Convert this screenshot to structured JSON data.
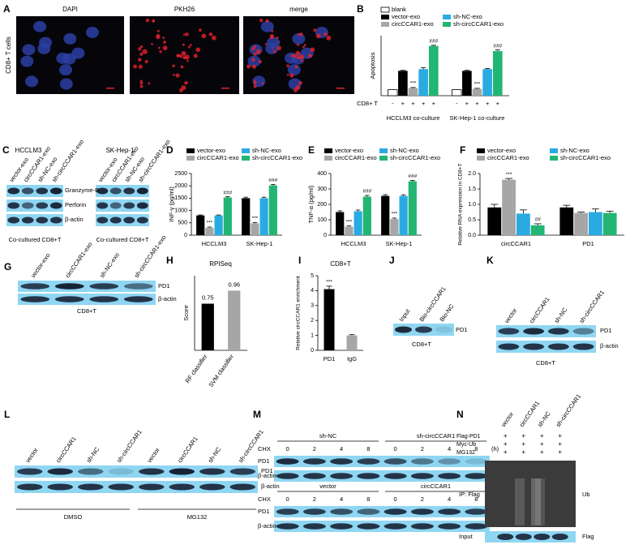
{
  "figure": {
    "a": {
      "letter": "A",
      "channels": [
        "DAPI",
        "PKH26",
        "merge"
      ],
      "row_label": "CD8+ T cells"
    },
    "c": {
      "letter": "C",
      "groups": [
        {
          "title": "HCCLM3",
          "lanes": [
            "vector-exo",
            "circCCAR1-exo",
            "sh-NC-exo",
            "sh-circCCAR1-exo"
          ]
        },
        {
          "title": "SK-Hep-1",
          "lanes": [
            "vector-exo",
            "circCCAR1-exo",
            "sh-NC-exo",
            "sh-circCCAR1-exo"
          ]
        }
      ],
      "proteins": [
        "Granzyme-B",
        "Perforin",
        "β-actin"
      ],
      "caption": "Co-cultured CD8+T"
    },
    "g": {
      "letter": "G",
      "lanes": [
        "vector-exo",
        "circCCAR1-exo",
        "sh-NC-exo",
        "sh-circCCAR1-exo"
      ],
      "proteins": [
        "PD1",
        "β-actin"
      ],
      "caption": "CD8+T"
    },
    "j": {
      "letter": "J",
      "lanes": [
        "Input",
        "Bio-circCCAR1",
        "Bio-NC"
      ],
      "proteins": [
        "PD1"
      ],
      "caption": "CD8+T"
    },
    "k": {
      "letter": "K",
      "lanes": [
        "vector",
        "circCCAR1",
        "sh-NC",
        "sh-circCCAR1"
      ],
      "proteins": [
        "PD1",
        "β-actin"
      ],
      "caption": "CD8+T"
    },
    "l": {
      "letter": "L",
      "lanes": [
        "vector",
        "circCCAR1",
        "sh-NC",
        "sh-circCCAR1",
        "vector",
        "circCCAR1",
        "sh-NC",
        "sh-circCCAR1"
      ],
      "proteins": [
        "PD1",
        "β-actin"
      ],
      "treatments": [
        "DMSO",
        "MG132"
      ]
    },
    "m": {
      "letter": "M",
      "blocks": [
        {
          "groups": [
            "sh-NC",
            "sh-circCCAR1"
          ]
        },
        {
          "groups": [
            "vector",
            "circCCAR1"
          ]
        }
      ],
      "treatment": "CHX",
      "times": [
        0,
        2,
        4,
        8
      ],
      "unit": "(h)",
      "proteins": [
        "PD1",
        "β-actin"
      ]
    },
    "n": {
      "letter": "N",
      "lanes": [
        "vector",
        "circCCAR1",
        "sh-NC",
        "sh-circCCAR1"
      ],
      "rows": [
        {
          "label": "Flag-PD1",
          "marks": [
            "+",
            "+",
            "+",
            "+"
          ]
        },
        {
          "label": "Myc-Ub",
          "marks": [
            "+",
            "+",
            "+",
            "+"
          ]
        },
        {
          "label": "MG132",
          "marks": [
            "+",
            "+",
            "+",
            "+"
          ]
        }
      ],
      "ip_label": "IP: Flag",
      "ip_blot": "Ub",
      "input_label": "Input",
      "input_blot": "Flag"
    }
  },
  "chart_data": [
    {
      "type": "bar",
      "panel": "B",
      "ylabel": "Apoptosis",
      "categories": [
        "HCCLM3 co-culture",
        "SK-Hep-1 co-culture"
      ],
      "ylim": [
        0,
        35
      ],
      "row": {
        "label": "CD8+ T",
        "marks": [
          "-",
          "+",
          "+",
          "+",
          "+"
        ]
      },
      "series": [
        {
          "name": "blank",
          "color": "#ffffff",
          "values": [
            3.5,
            3.5
          ]
        },
        {
          "name": "vector-exo",
          "color": "#000000",
          "values": [
            14.5,
            14.5
          ],
          "errors": [
            0.3,
            0.3
          ]
        },
        {
          "name": "circCCAR1-exo",
          "color": "#a6a6a6",
          "values": [
            4.5,
            4
          ],
          "errors": [
            0.3,
            0.3
          ],
          "annotations": [
            "***",
            "***"
          ]
        },
        {
          "name": "sh-NC-exo",
          "color": "#29abe2",
          "values": [
            15.5,
            15.5
          ],
          "errors": [
            0.8,
            0.4
          ]
        },
        {
          "name": "sh-circCCAR1-exo",
          "color": "#22b573",
          "values": [
            29,
            26
          ],
          "errors": [
            0.4,
            0.7
          ],
          "annotations": [
            "###",
            "###"
          ]
        }
      ]
    },
    {
      "type": "bar",
      "panel": "D",
      "ylabel": "INF-γ (pg/ml)",
      "categories": [
        "HCCLM3",
        "SK-Hep-1"
      ],
      "ylim": [
        0,
        2500
      ],
      "yticks": [
        0,
        500,
        1000,
        1500,
        2000,
        2500
      ],
      "series": [
        {
          "name": "vector-exo",
          "color": "#000000",
          "values": [
            800,
            1500
          ],
          "errors": [
            20,
            40
          ]
        },
        {
          "name": "circCCAR1-exo",
          "color": "#a6a6a6",
          "values": [
            300,
            480
          ],
          "errors": [
            30,
            30
          ],
          "annotations": [
            "***",
            "***"
          ]
        },
        {
          "name": "sh-NC-exo",
          "color": "#29abe2",
          "values": [
            800,
            1500
          ],
          "errors": [
            20,
            40
          ]
        },
        {
          "name": "sh-circCCAR1-exo",
          "color": "#22b573",
          "values": [
            1530,
            2020
          ],
          "errors": [
            30,
            40
          ],
          "annotations": [
            "###",
            "###"
          ]
        }
      ]
    },
    {
      "type": "bar",
      "panel": "E",
      "ylabel": "TNF-α (pg/ml)",
      "categories": [
        "HCCLM3",
        "SK-Hep-1"
      ],
      "ylim": [
        0,
        400
      ],
      "yticks": [
        0,
        100,
        200,
        300,
        400
      ],
      "series": [
        {
          "name": "vector-exo",
          "color": "#000000",
          "values": [
            150,
            255
          ],
          "errors": [
            8,
            8
          ]
        },
        {
          "name": "circCCAR1-exo",
          "color": "#a6a6a6",
          "values": [
            55,
            105
          ],
          "errors": [
            5,
            6
          ],
          "annotations": [
            "***",
            "***"
          ]
        },
        {
          "name": "sh-NC-exo",
          "color": "#29abe2",
          "values": [
            155,
            255
          ],
          "errors": [
            8,
            7
          ]
        },
        {
          "name": "sh-circCCAR1-exo",
          "color": "#22b573",
          "values": [
            250,
            350
          ],
          "errors": [
            8,
            6
          ],
          "annotations": [
            "###",
            "###"
          ]
        }
      ]
    },
    {
      "type": "bar",
      "panel": "F",
      "ylabel": "Relative RNA expression in CD8+T",
      "categories": [
        "circCCAR1",
        "PD1"
      ],
      "ylim": [
        0,
        2
      ],
      "yticks": [
        {
          "value": 0,
          "label": "0.0"
        },
        {
          "value": 0.5,
          "label": "0.5"
        },
        {
          "value": 1,
          "label": "1.0"
        },
        {
          "value": 1.5,
          "label": "1.5"
        },
        {
          "value": 2,
          "label": "2.0"
        }
      ],
      "series": [
        {
          "name": "vector-exo",
          "color": "#000000",
          "values": [
            0.9,
            0.9
          ],
          "errors": [
            0.1,
            0.07
          ]
        },
        {
          "name": "circCCAR1-exo",
          "color": "#a6a6a6",
          "values": [
            1.8,
            0.72
          ],
          "errors": [
            0.04,
            0.03
          ],
          "annotations": [
            "***",
            null
          ]
        },
        {
          "name": "sh-NC-exo",
          "color": "#29abe2",
          "values": [
            0.7,
            0.75
          ],
          "errors": [
            0.12,
            0.1
          ]
        },
        {
          "name": "sh-circCCAR1-exo",
          "color": "#22b573",
          "values": [
            0.32,
            0.72
          ],
          "errors": [
            0.05,
            0.06
          ],
          "annotations": [
            "##",
            null
          ]
        }
      ]
    },
    {
      "type": "bar",
      "panel": "H",
      "title": "RPISeq",
      "ylabel": "Score",
      "categories": [
        "RF classifier",
        "SVM classifier"
      ],
      "values": [
        0.75,
        0.96
      ],
      "colors": [
        "#000000",
        "#a6a6a6"
      ],
      "ylim": [
        0,
        1.2
      ]
    },
    {
      "type": "bar",
      "panel": "I",
      "title": "CD8+T",
      "ylabel": "Relative circCCAR1 enrichment",
      "categories": [
        "PD1",
        "IgG"
      ],
      "values": [
        4.1,
        1.0
      ],
      "errors": [
        0.2,
        0.05
      ],
      "annotations": [
        "***",
        null
      ],
      "colors": [
        "#000000",
        "#a6a6a6"
      ],
      "ylim": [
        0,
        5
      ],
      "yticks": [
        0,
        1,
        2,
        3,
        4,
        5
      ]
    }
  ]
}
